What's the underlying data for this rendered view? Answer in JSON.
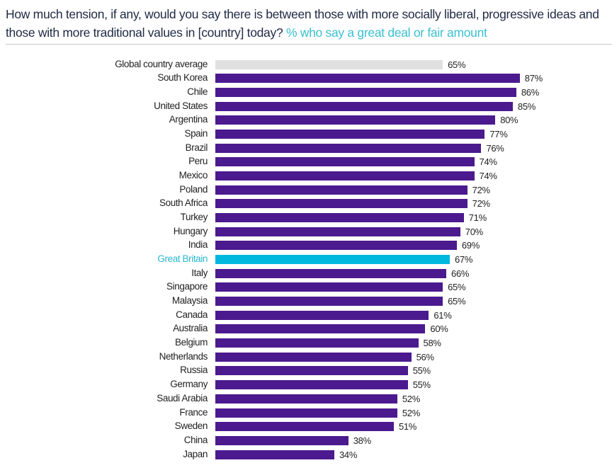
{
  "chart_data": {
    "type": "bar",
    "orientation": "horizontal",
    "title": "How much tension, if any, would you say there is between those with more socially liberal, progressive ideas and those with more traditional values in [country] today?",
    "subtitle": "% who say a great deal or fair amount",
    "unit": "%",
    "xlim": [
      0,
      100
    ],
    "grid": false,
    "categories": [
      "Global country average",
      "South Korea",
      "Chile",
      "United States",
      "Argentina",
      "Spain",
      "Brazil",
      "Peru",
      "Mexico",
      "Poland",
      "South Africa",
      "Turkey",
      "Hungary",
      "India",
      "Great Britain",
      "Italy",
      "Singapore",
      "Malaysia",
      "Canada",
      "Australia",
      "Belgium",
      "Netherlands",
      "Russia",
      "Germany",
      "Saudi Arabia",
      "France",
      "Sweden",
      "China",
      "Japan"
    ],
    "values": [
      65,
      87,
      86,
      85,
      80,
      77,
      76,
      74,
      74,
      72,
      72,
      71,
      70,
      69,
      67,
      66,
      65,
      65,
      61,
      60,
      58,
      56,
      55,
      55,
      52,
      52,
      51,
      38,
      34
    ],
    "highlight": {
      "Global country average": "average",
      "Great Britain": "highlight"
    },
    "colors": {
      "default": "#4b1a8e",
      "average": "#e0e0e0",
      "highlight": "#00b8de",
      "highlight_label": "#2bb6cf",
      "title": "#1f2a44",
      "subtitle": "#3bbfd0"
    }
  }
}
